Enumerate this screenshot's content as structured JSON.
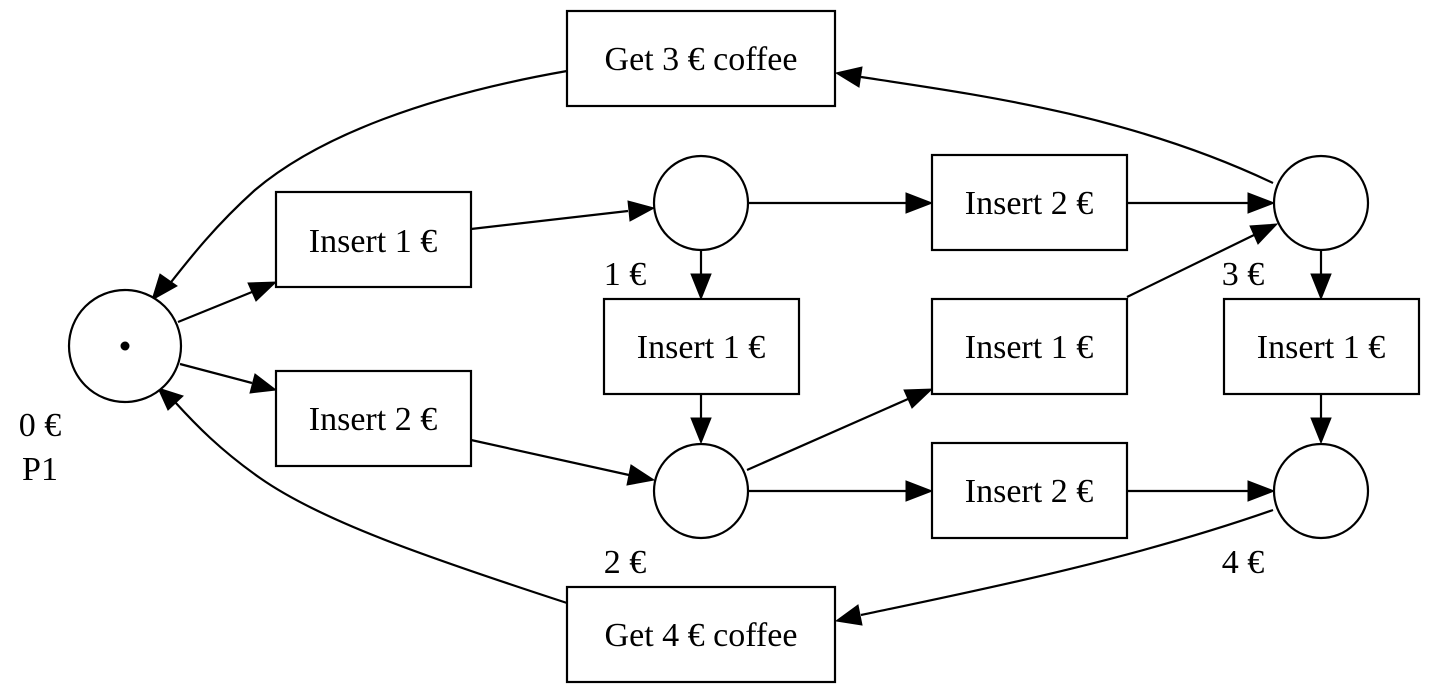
{
  "diagram": {
    "type": "petri-net",
    "places": {
      "p0": {
        "amount": "0 €",
        "name": "P1",
        "tokens": 1
      },
      "p1": {
        "amount": "1 €",
        "tokens": 0
      },
      "p2": {
        "amount": "2 €",
        "tokens": 0
      },
      "p3": {
        "amount": "3 €",
        "tokens": 0
      },
      "p4": {
        "amount": "4 €",
        "tokens": 0
      }
    },
    "transitions": {
      "get3": {
        "label": "Get 3 € coffee"
      },
      "get4": {
        "label": "Get 4 € coffee"
      },
      "ins1_0_1": {
        "label": "Insert 1 €"
      },
      "ins2_0_2": {
        "label": "Insert 2 €"
      },
      "ins1_1_2": {
        "label": "Insert 1 €"
      },
      "ins2_1_3": {
        "label": "Insert 2 €"
      },
      "ins1_2_3": {
        "label": "Insert 1 €"
      },
      "ins2_2_4": {
        "label": "Insert 2 €"
      },
      "ins1_3_4": {
        "label": "Insert 1 €"
      }
    },
    "arcs": [
      {
        "from": "p0",
        "to": "ins1_0_1"
      },
      {
        "from": "p0",
        "to": "ins2_0_2"
      },
      {
        "from": "ins1_0_1",
        "to": "p1"
      },
      {
        "from": "ins2_0_2",
        "to": "p2"
      },
      {
        "from": "p1",
        "to": "ins2_1_3"
      },
      {
        "from": "p1",
        "to": "ins1_1_2"
      },
      {
        "from": "ins1_1_2",
        "to": "p2"
      },
      {
        "from": "p2",
        "to": "ins1_2_3"
      },
      {
        "from": "p2",
        "to": "ins2_2_4"
      },
      {
        "from": "ins2_1_3",
        "to": "p3"
      },
      {
        "from": "ins1_2_3",
        "to": "p3"
      },
      {
        "from": "p3",
        "to": "ins1_3_4"
      },
      {
        "from": "ins2_2_4",
        "to": "p4"
      },
      {
        "from": "ins1_3_4",
        "to": "p4"
      },
      {
        "from": "p3",
        "to": "get3"
      },
      {
        "from": "get3",
        "to": "p0"
      },
      {
        "from": "p4",
        "to": "get4"
      },
      {
        "from": "get4",
        "to": "p0"
      }
    ]
  }
}
